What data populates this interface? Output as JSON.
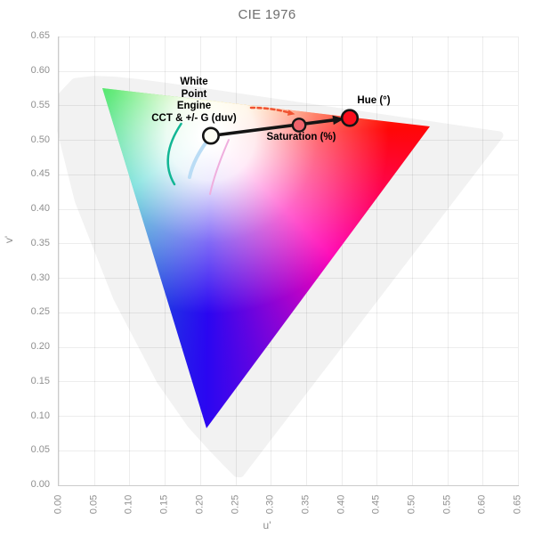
{
  "title": "CIE 1976",
  "colors": {
    "background": "#ffffff",
    "gridline": "rgba(0,0,0,0.072)",
    "axis_line": "#cbcbcb",
    "tick_label": "#8f8f8f",
    "title_text": "#6f6f6f",
    "spectral_locus_fill": "#f2f2f2",
    "annotation_text": "#000000",
    "arrow": "#141414",
    "white_point_fill": "#fdfdf4",
    "saturation_point_fill": "#ef626b",
    "hue_point_fill": "#fb0d1c",
    "hue_arc_dashed": "#f05332",
    "curve_teal": "#12b694",
    "curve_lightblue": "#badcf5",
    "curve_pink": "#efaede"
  },
  "axes": {
    "x": {
      "title": "u'",
      "range": [
        0,
        0.65
      ],
      "tick_labels": [
        "0.00",
        "0.05",
        "0.10",
        "0.15",
        "0.20",
        "0.25",
        "0.30",
        "0.35",
        "0.40",
        "0.45",
        "0.50",
        "0.55",
        "0.60",
        "0.65"
      ]
    },
    "y": {
      "title": "v'",
      "range": [
        0,
        0.65
      ],
      "tick_labels": [
        "0.00",
        "0.05",
        "0.10",
        "0.15",
        "0.20",
        "0.25",
        "0.30",
        "0.35",
        "0.40",
        "0.45",
        "0.50",
        "0.55",
        "0.60",
        "0.65"
      ]
    }
  },
  "annotations": {
    "white_point_label": "White\nPoint\nEngine\nCCT & +/- G (duv)",
    "saturation_label": "Saturation (%)",
    "hue_label": "Hue (°)"
  },
  "chart_data": {
    "type": "scatter",
    "title": "CIE 1976",
    "xlabel": "u'",
    "ylabel": "v'",
    "xlim": [
      0,
      0.65
    ],
    "ylim": [
      0,
      0.65
    ],
    "grid": true,
    "points": [
      {
        "name": "white-point",
        "uv": [
          0.2153,
          0.5058
        ],
        "r": 8.7,
        "fill": "#fdfdf4",
        "stroke_w": 2.6
      },
      {
        "name": "saturation-point",
        "uv": [
          0.3401,
          0.5213
        ],
        "r": 7.2,
        "fill": "#ef626b",
        "stroke_w": 2.4
      },
      {
        "name": "hue-point",
        "uv": [
          0.4118,
          0.5316
        ],
        "r": 8.8,
        "fill": "#fb0d1c",
        "stroke_w": 2.6
      }
    ],
    "arrow": {
      "from_uv": [
        0.2153,
        0.5058
      ],
      "to_uv": [
        0.4118,
        0.5316
      ]
    },
    "gamut_triangle": {
      "vertices_uv": [
        [
          0.0617,
          0.5748
        ],
        [
          0.5252,
          0.5194
        ],
        [
          0.2091,
          0.0819
        ]
      ]
    },
    "spectral_locus_uv": [
      [
        0.6234,
        0.5065
      ],
      [
        0.2568,
        0.0166
      ],
      [
        0.2522,
        0.0169
      ],
      [
        0.2347,
        0.035
      ],
      [
        0.2161,
        0.0549
      ],
      [
        0.1877,
        0.0871
      ],
      [
        0.1441,
        0.151
      ],
      [
        0.0828,
        0.2708
      ],
      [
        0.0282,
        0.4117
      ],
      [
        0.0035,
        0.513
      ],
      [
        0.0046,
        0.5638
      ],
      [
        0.0231,
        0.5836
      ],
      [
        0.0501,
        0.5868
      ],
      [
        0.0792,
        0.5857
      ],
      [
        0.1127,
        0.5821
      ],
      [
        0.1531,
        0.5766
      ],
      [
        0.2026,
        0.5694
      ],
      [
        0.2623,
        0.5604
      ],
      [
        0.3315,
        0.5501
      ],
      [
        0.4035,
        0.5393
      ],
      [
        0.4692,
        0.5296
      ],
      [
        0.5202,
        0.5219
      ],
      [
        0.5565,
        0.5165
      ],
      [
        0.6005,
        0.5099
      ]
    ],
    "guide_curves": [
      {
        "name": "planckian-locus-curve",
        "color": "#12b694",
        "width": 2.5,
        "dashed": false,
        "arrow": false,
        "pts_uv": [
          [
            0.1732,
            0.5232
          ],
          [
            0.1549,
            0.4768
          ],
          [
            0.1637,
            0.4355
          ]
        ]
      },
      {
        "name": "daylight-locus-curve",
        "color": "#badcf5",
        "width": 4,
        "dashed": false,
        "arrow": false,
        "pts_uv": [
          [
            0.2141,
            0.5039
          ],
          [
            0.1952,
            0.4742
          ],
          [
            0.1851,
            0.4458
          ]
        ]
      },
      {
        "name": "isotherm-curve",
        "color": "#efaede",
        "width": 2,
        "dashed": false,
        "arrow": false,
        "pts_uv": [
          [
            0.2406,
            0.5
          ],
          [
            0.2242,
            0.4574
          ],
          [
            0.2141,
            0.4213
          ]
        ]
      },
      {
        "name": "hue-sweep-arc",
        "color": "#f05332",
        "width": 2.5,
        "dashed": true,
        "arrow": true,
        "pts_uv": [
          [
            0.272,
            0.5465
          ],
          [
            0.301,
            0.5445
          ],
          [
            0.3287,
            0.5387
          ]
        ]
      }
    ]
  }
}
